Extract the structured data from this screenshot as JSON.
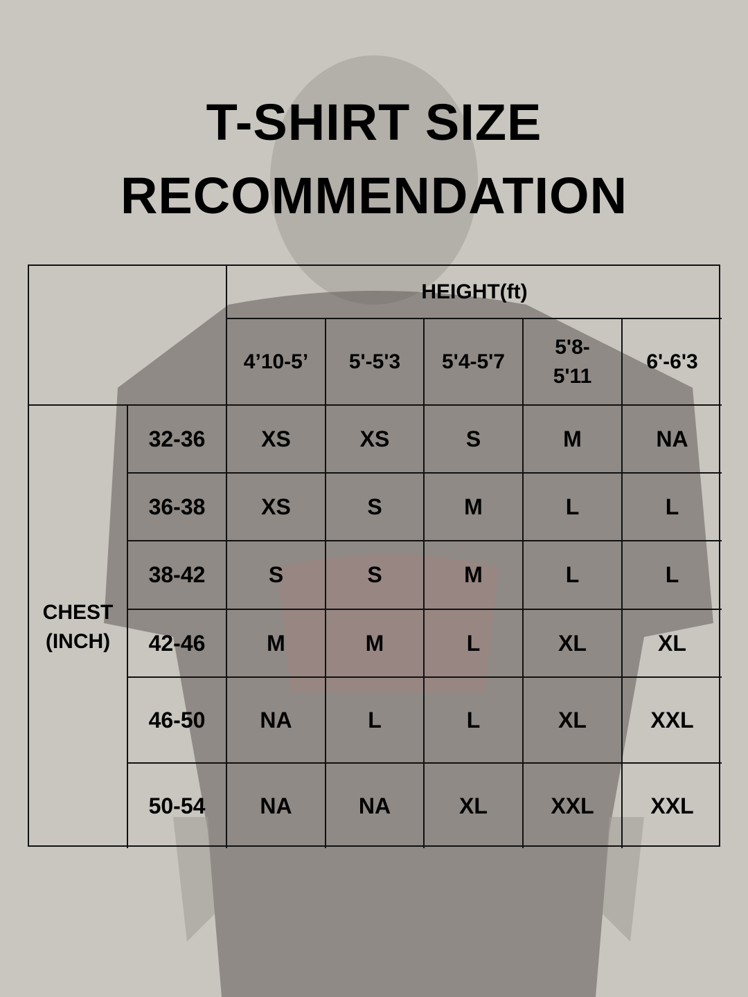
{
  "title_line1": "T-SHIRT SIZE",
  "title_line2": "RECOMMENDATION",
  "table": {
    "height_header": "HEIGHT(ft)",
    "chest_header": "CHEST (INCH)",
    "height_ranges": [
      "4’10-5’",
      "5'-5'3",
      "5'4-5'7",
      "5'8-5'11",
      "6'-6'3"
    ],
    "rows": [
      {
        "chest": "32-36",
        "sizes": [
          "XS",
          "XS",
          "S",
          "M",
          "NA"
        ]
      },
      {
        "chest": "36-38",
        "sizes": [
          "XS",
          "S",
          "M",
          "L",
          "L"
        ]
      },
      {
        "chest": "38-42",
        "sizes": [
          "S",
          "S",
          "M",
          "L",
          "L"
        ]
      },
      {
        "chest": "42-46",
        "sizes": [
          "M",
          "M",
          "L",
          "XL",
          "XL"
        ]
      },
      {
        "chest": "46-50",
        "sizes": [
          "NA",
          "L",
          "L",
          "XL",
          "XXL"
        ]
      },
      {
        "chest": "50-54",
        "sizes": [
          "NA",
          "NA",
          "XL",
          "XXL",
          "XXL"
        ]
      }
    ]
  },
  "colors": {
    "background": "#c9c6c0",
    "text": "#000000",
    "lines": "#111111"
  }
}
